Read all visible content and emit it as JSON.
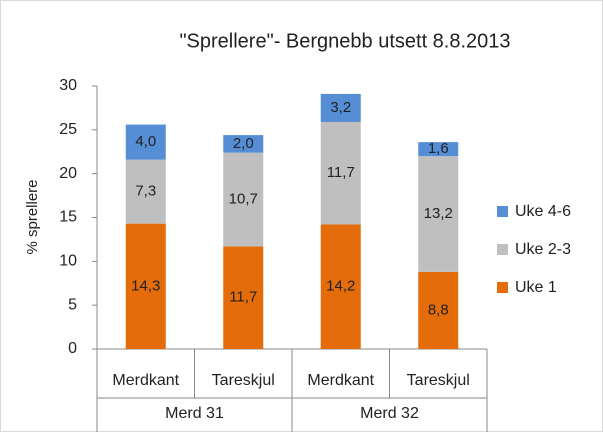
{
  "chart_data": {
    "type": "stacked-bar",
    "title": "\"Sprellere\"- Bergnebb utsett 8.8.2013",
    "y_label": "% sprellere",
    "groups": [
      {
        "name": "Merd 31",
        "categories": [
          "Merdkant",
          "Tareskjul"
        ]
      },
      {
        "name": "Merd 32",
        "categories": [
          "Merdkant",
          "Tareskjul"
        ]
      }
    ],
    "series": [
      {
        "name": "Uke 1",
        "color": "#e46c0a",
        "values": [
          14.3,
          11.7,
          14.2,
          8.8
        ],
        "value_labels": [
          "14,3",
          "11,7",
          "14,2",
          "8,8"
        ]
      },
      {
        "name": "Uke 2-3",
        "color": "#bfbfbf",
        "values": [
          7.3,
          10.7,
          11.7,
          13.2
        ],
        "value_labels": [
          "7,3",
          "10,7",
          "11,7",
          "13,2"
        ]
      },
      {
        "name": "Uke 4-6",
        "color": "#558ed5",
        "values": [
          4.0,
          2.0,
          3.2,
          1.6
        ],
        "value_labels": [
          "4,0",
          "2,0",
          "3,2",
          "1,6"
        ]
      }
    ],
    "ylim": [
      0,
      30
    ],
    "yticks": [
      0,
      5,
      10,
      15,
      20,
      25,
      30
    ],
    "legend": "right"
  }
}
